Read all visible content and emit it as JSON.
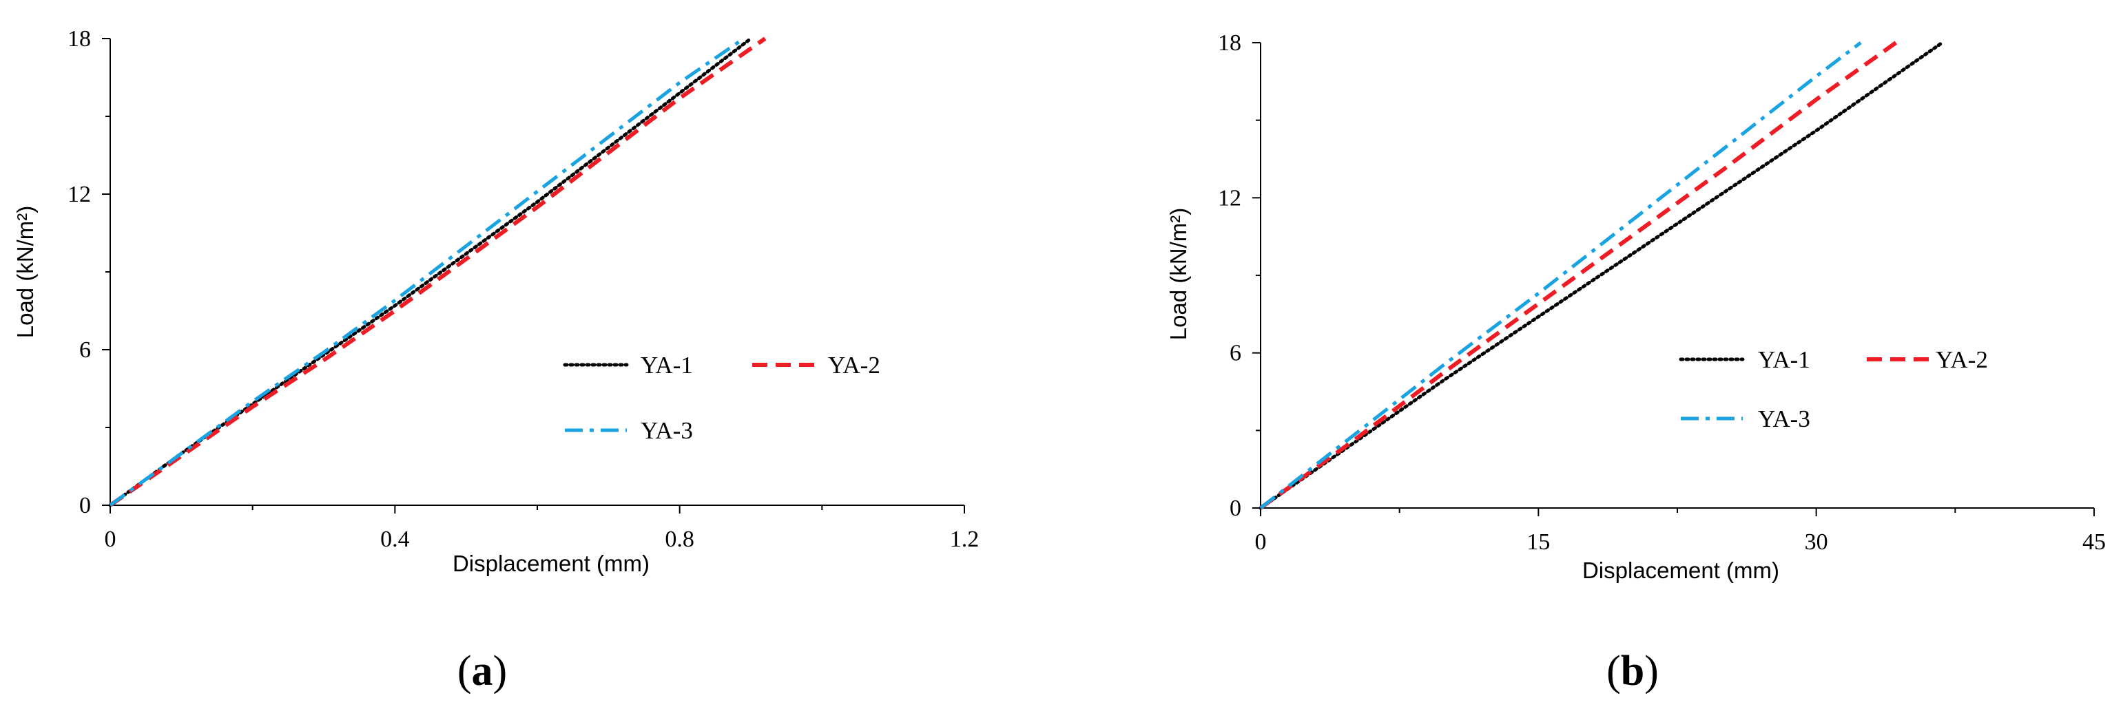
{
  "chart_data": [
    {
      "type": "line",
      "panel_label": "a",
      "xlabel": "Displacement (mm)",
      "ylabel": "Load (kN/m²)",
      "xlim": [
        0,
        1.2
      ],
      "ylim": [
        0,
        18
      ],
      "x_ticks": [
        0,
        0.4,
        0.8,
        1.2
      ],
      "y_ticks": [
        0,
        6,
        12,
        18
      ],
      "x_tick_labels": [
        "0",
        "0.4",
        "0.8",
        "1.2"
      ],
      "y_tick_labels": [
        "0",
        "6",
        "12",
        "18"
      ],
      "legend_position": "center-right",
      "series": [
        {
          "name": "YA-1",
          "style": "dotted",
          "color": "#000000",
          "points": [
            [
              0,
              0
            ],
            [
              0.1,
              2
            ],
            [
              0.2,
              3.9
            ],
            [
              0.3,
              5.8
            ],
            [
              0.4,
              7.7
            ],
            [
              0.5,
              9.7
            ],
            [
              0.6,
              11.7
            ],
            [
              0.7,
              13.8
            ],
            [
              0.8,
              15.9
            ],
            [
              0.9,
              18
            ]
          ]
        },
        {
          "name": "YA-2",
          "style": "dashed",
          "color": "#ee1c25",
          "points": [
            [
              0,
              0
            ],
            [
              0.1,
              1.9
            ],
            [
              0.2,
              3.8
            ],
            [
              0.3,
              5.6
            ],
            [
              0.4,
              7.5
            ],
            [
              0.5,
              9.5
            ],
            [
              0.6,
              11.5
            ],
            [
              0.7,
              13.6
            ],
            [
              0.8,
              15.7
            ],
            [
              0.92,
              18
            ]
          ]
        },
        {
          "name": "YA-3",
          "style": "dash-dot",
          "color": "#1aa3e1",
          "points": [
            [
              0,
              0
            ],
            [
              0.1,
              2
            ],
            [
              0.2,
              4
            ],
            [
              0.3,
              5.9
            ],
            [
              0.4,
              7.9
            ],
            [
              0.5,
              10
            ],
            [
              0.6,
              12.1
            ],
            [
              0.7,
              14.2
            ],
            [
              0.8,
              16.3
            ],
            [
              0.89,
              18
            ]
          ]
        }
      ]
    },
    {
      "type": "line",
      "panel_label": "b",
      "xlabel": "Displacement (mm)",
      "ylabel": "Load (kN/m²)",
      "xlim": [
        0,
        45
      ],
      "ylim": [
        0,
        18
      ],
      "x_ticks": [
        0,
        15,
        30,
        45
      ],
      "y_ticks": [
        0,
        6,
        12,
        18
      ],
      "x_tick_labels": [
        "0",
        "15",
        "30",
        "45"
      ],
      "y_tick_labels": [
        "0",
        "6",
        "12",
        "18"
      ],
      "legend_position": "center-right",
      "series": [
        {
          "name": "YA-1",
          "style": "dotted",
          "color": "#000000",
          "points": [
            [
              0,
              0
            ],
            [
              5,
              2.5
            ],
            [
              10,
              5
            ],
            [
              15,
              7.4
            ],
            [
              20,
              9.8
            ],
            [
              25,
              12.2
            ],
            [
              30,
              14.6
            ],
            [
              36.8,
              18
            ]
          ]
        },
        {
          "name": "YA-2",
          "style": "dashed",
          "color": "#ee1c25",
          "points": [
            [
              0,
              0
            ],
            [
              5,
              2.6
            ],
            [
              10,
              5.3
            ],
            [
              15,
              7.9
            ],
            [
              20,
              10.5
            ],
            [
              25,
              13.1
            ],
            [
              30,
              15.8
            ],
            [
              34.3,
              18
            ]
          ]
        },
        {
          "name": "YA-3",
          "style": "dash-dot",
          "color": "#1aa3e1",
          "points": [
            [
              0,
              0
            ],
            [
              5,
              2.8
            ],
            [
              10,
              5.6
            ],
            [
              15,
              8.3
            ],
            [
              20,
              11.1
            ],
            [
              25,
              13.9
            ],
            [
              30,
              16.7
            ],
            [
              32.4,
              18
            ]
          ]
        }
      ]
    }
  ]
}
